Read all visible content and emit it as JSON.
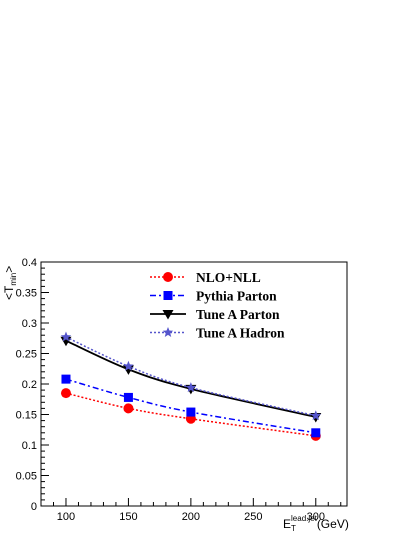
{
  "chart_data": {
    "type": "line",
    "x": [
      100,
      150,
      200,
      300
    ],
    "xlim": [
      80,
      325
    ],
    "ylim": [
      0,
      0.4
    ],
    "x_ticks": [
      "100",
      "150",
      "200",
      "250",
      "300"
    ],
    "y_ticks": [
      "0",
      "0.05",
      "0.1",
      "0.15",
      "0.2",
      "0.25",
      "0.3",
      "0.35",
      "0.4"
    ],
    "xlabel": {
      "main": "E",
      "sub": "T",
      "sup": "lead.jet",
      "unit": "(GeV)"
    },
    "ylabel": {
      "main": "<T",
      "sub": "min",
      "close": ">"
    },
    "grid": false,
    "legend_position": "top-center",
    "series": [
      {
        "name": "NLO+NLL",
        "values": [
          0.185,
          0.16,
          0.143,
          0.115
        ],
        "color": "#ff0000",
        "line": "dotted",
        "marker": "circle"
      },
      {
        "name": "Pythia Parton",
        "values": [
          0.208,
          0.178,
          0.154,
          0.12
        ],
        "color": "#0000ff",
        "line": "dash-dot",
        "marker": "square"
      },
      {
        "name": "Tune A Parton",
        "values": [
          0.271,
          0.224,
          0.192,
          0.146
        ],
        "color": "#000000",
        "line": "solid",
        "marker": "triangle-down"
      },
      {
        "name": "Tune A Hadron",
        "values": [
          0.277,
          0.229,
          0.194,
          0.148
        ],
        "color": "#5555cc",
        "line": "dotted",
        "marker": "star"
      }
    ]
  }
}
